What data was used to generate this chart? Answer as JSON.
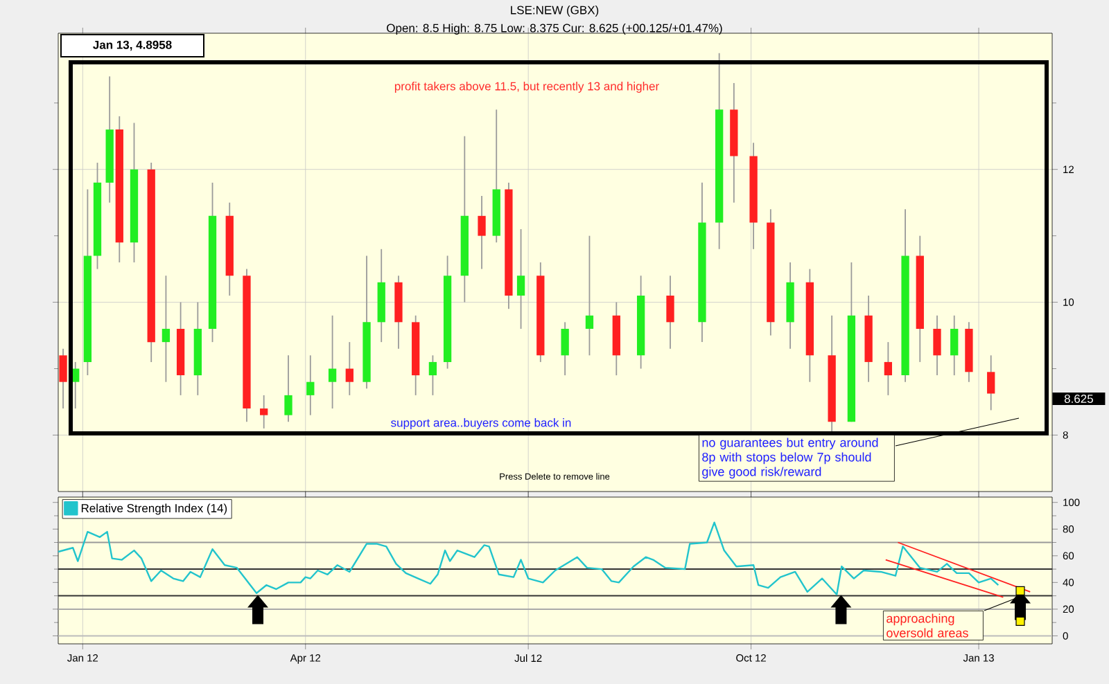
{
  "chart_data": [
    {
      "type": "candlestick",
      "title": "LSE:NEW (GBX)",
      "subtitle": "Open: 8.5 High: 8.75 Low: 8.375 Cur: 8.625 (+00.125/+01.47%)",
      "x": [
        "2011-12-25",
        "2011-12-30",
        "2012-01-04",
        "2012-01-08",
        "2012-01-13",
        "2012-01-17",
        "2012-01-23",
        "2012-01-30",
        "2012-02-05",
        "2012-02-11",
        "2012-02-18",
        "2012-02-24",
        "2012-03-02",
        "2012-03-09",
        "2012-03-16",
        "2012-03-26",
        "2012-04-04",
        "2012-04-13",
        "2012-04-20",
        "2012-04-27",
        "2012-05-03",
        "2012-05-10",
        "2012-05-17",
        "2012-05-24",
        "2012-05-30",
        "2012-06-06",
        "2012-06-13",
        "2012-06-19",
        "2012-06-24",
        "2012-06-29",
        "2012-07-07",
        "2012-07-17",
        "2012-07-27",
        "2012-08-07",
        "2012-08-17",
        "2012-08-29",
        "2012-09-11",
        "2012-09-18",
        "2012-09-24",
        "2012-10-02",
        "2012-10-09",
        "2012-10-17",
        "2012-10-25",
        "2012-11-03",
        "2012-11-11",
        "2012-11-18",
        "2012-11-26",
        "2012-12-03",
        "2012-12-09",
        "2012-12-16",
        "2012-12-23",
        "2012-12-29",
        "2013-01-07"
      ],
      "ohlc": [
        [
          9.2,
          9.3,
          8.4,
          8.8
        ],
        [
          8.8,
          9.1,
          8.4,
          9.0
        ],
        [
          9.1,
          11.7,
          8.9,
          10.7
        ],
        [
          10.7,
          12.1,
          10.5,
          11.8
        ],
        [
          11.8,
          13.4,
          11.5,
          12.6
        ],
        [
          12.6,
          12.8,
          10.6,
          10.9
        ],
        [
          10.9,
          12.7,
          10.6,
          12.0
        ],
        [
          12.0,
          12.1,
          9.1,
          9.4
        ],
        [
          9.4,
          10.4,
          8.8,
          9.6
        ],
        [
          9.6,
          10.0,
          8.6,
          8.9
        ],
        [
          8.9,
          10.0,
          8.6,
          9.6
        ],
        [
          9.6,
          11.8,
          9.4,
          11.3
        ],
        [
          11.3,
          11.5,
          10.1,
          10.4
        ],
        [
          10.4,
          10.5,
          8.2,
          8.4
        ],
        [
          8.4,
          8.6,
          8.1,
          8.3
        ],
        [
          8.3,
          9.2,
          8.2,
          8.6
        ],
        [
          8.6,
          9.2,
          8.3,
          8.8
        ],
        [
          8.8,
          9.8,
          8.4,
          9.0
        ],
        [
          9.0,
          9.4,
          8.6,
          8.8
        ],
        [
          8.8,
          10.7,
          8.7,
          9.7
        ],
        [
          9.7,
          10.8,
          9.4,
          10.3
        ],
        [
          10.3,
          10.4,
          9.3,
          9.7
        ],
        [
          9.7,
          9.8,
          8.6,
          8.9
        ],
        [
          8.9,
          9.2,
          8.6,
          9.1
        ],
        [
          9.1,
          10.7,
          9.0,
          10.4
        ],
        [
          10.4,
          12.5,
          10.0,
          11.3
        ],
        [
          11.3,
          11.6,
          10.5,
          11.0
        ],
        [
          11.0,
          12.9,
          10.9,
          11.7
        ],
        [
          11.7,
          11.8,
          9.9,
          10.1
        ],
        [
          10.1,
          11.1,
          9.6,
          10.4
        ],
        [
          10.4,
          10.6,
          9.1,
          9.2
        ],
        [
          9.2,
          9.7,
          8.9,
          9.6
        ],
        [
          9.6,
          11.0,
          9.2,
          9.8
        ],
        [
          9.8,
          10.0,
          8.9,
          9.2
        ],
        [
          9.2,
          10.4,
          9.0,
          10.1
        ],
        [
          10.1,
          10.4,
          9.3,
          9.7
        ],
        [
          9.7,
          11.8,
          9.4,
          11.2
        ],
        [
          11.2,
          13.75,
          10.8,
          12.9
        ],
        [
          12.9,
          13.3,
          11.5,
          12.2
        ],
        [
          12.2,
          12.4,
          10.8,
          11.2
        ],
        [
          11.2,
          11.4,
          9.5,
          9.7
        ],
        [
          9.7,
          10.6,
          9.3,
          10.3
        ],
        [
          10.3,
          10.5,
          8.8,
          9.2
        ],
        [
          9.2,
          9.8,
          8.05,
          8.2
        ],
        [
          8.2,
          10.6,
          8.2,
          9.8
        ],
        [
          9.8,
          10.1,
          8.8,
          9.1
        ],
        [
          9.1,
          9.4,
          8.6,
          8.9
        ],
        [
          8.9,
          11.4,
          8.8,
          10.7
        ],
        [
          10.7,
          11.0,
          9.1,
          9.6
        ],
        [
          9.6,
          9.8,
          8.9,
          9.2
        ],
        [
          9.2,
          9.8,
          8.9,
          9.6
        ],
        [
          9.6,
          9.7,
          8.8,
          8.95
        ],
        [
          8.95,
          9.2,
          8.375,
          8.625
        ]
      ],
      "colors": [
        "#ff2020",
        "#22ee22",
        "#22ee22",
        "#22ee22",
        "#22ee22",
        "#ff2020",
        "#22ee22",
        "#ff2020",
        "#22ee22",
        "#ff2020",
        "#22ee22",
        "#22ee22",
        "#ff2020",
        "#ff2020",
        "#ff2020",
        "#22ee22",
        "#22ee22",
        "#22ee22",
        "#ff2020",
        "#22ee22",
        "#22ee22",
        "#ff2020",
        "#ff2020",
        "#22ee22",
        "#22ee22",
        "#22ee22",
        "#ff2020",
        "#22ee22",
        "#ff2020",
        "#22ee22",
        "#ff2020",
        "#22ee22",
        "#22ee22",
        "#ff2020",
        "#22ee22",
        "#ff2020",
        "#22ee22",
        "#22ee22",
        "#ff2020",
        "#ff2020",
        "#ff2020",
        "#22ee22",
        "#ff2020",
        "#ff2020",
        "#22ee22",
        "#ff2020",
        "#ff2020",
        "#22ee22",
        "#ff2020",
        "#ff2020",
        "#22ee22",
        "#ff2020",
        "#ff2020"
      ],
      "xlim": [
        "2011-12-23",
        "2013-02-01"
      ],
      "ylim": [
        7.15,
        14.05
      ],
      "xticks": [
        {
          "value": "2012-01-02",
          "label": null
        },
        {
          "value": "2012-04-02",
          "label": null
        },
        {
          "value": "2012-07-02",
          "label": null
        },
        {
          "value": "2012-10-01",
          "label": null
        },
        {
          "value": "2013-01-02",
          "label": null
        }
      ],
      "yticks": [
        8,
        {
          "value": 9,
          "label": null
        },
        10,
        {
          "value": 11,
          "label": null
        },
        12,
        {
          "value": 13,
          "label": null
        }
      ],
      "tick_labels": "y",
      "grid": true,
      "annotations": [
        "Jan 13, 4.8958",
        "profit takers above 11.5, but recently 13 and higher",
        "support area..buyers come back in",
        "no guarantees but entry around 8p with stops below 7p should give good risk/reward",
        "Press Delete to remove line",
        "8.625"
      ]
    },
    {
      "type": "line",
      "legend": "top left",
      "grid": "x",
      "xlim": [
        "2011-12-23",
        "2013-02-01"
      ],
      "ylim": [
        -6,
        104
      ],
      "xticks": [
        {
          "value": "2012-01-02",
          "label": "Jan 12"
        },
        {
          "value": "2012-04-02",
          "label": "Apr 12"
        },
        {
          "value": "2012-07-02",
          "label": "Jul 12"
        },
        {
          "value": "2012-10-01",
          "label": "Oct 12"
        },
        {
          "value": "2013-01-02",
          "label": "Jan 13"
        }
      ],
      "yticks": [
        0,
        {
          "value": 10,
          "label": null
        },
        20,
        {
          "value": 30,
          "label": null
        },
        40,
        {
          "value": 50,
          "label": null
        },
        60,
        {
          "value": 70,
          "label": null
        },
        80,
        {
          "value": 90,
          "label": null
        },
        100
      ],
      "ref_lines": [
        {
          "axis": "y",
          "value": 70,
          "color": "#999999"
        },
        {
          "axis": "y",
          "value": 50,
          "color": "#333333"
        },
        {
          "axis": "y",
          "value": 30,
          "color": "#333333"
        },
        {
          "axis": "y",
          "value": 20,
          "color": "#aaaaaa"
        },
        {
          "axis": "y",
          "value": 0,
          "color": "#bbbbbb"
        }
      ],
      "series": [
        {
          "name": "Relative Strength Index (14)",
          "color": "#22c4cc",
          "x": [
            "2011-12-23",
            "2011-12-29",
            "2011-12-31",
            "2012-01-04",
            "2012-01-09",
            "2012-01-12",
            "2012-01-14",
            "2012-01-18",
            "2012-01-23",
            "2012-01-26",
            "2012-01-30",
            "2012-02-03",
            "2012-02-08",
            "2012-02-12",
            "2012-02-15",
            "2012-02-19",
            "2012-02-24",
            "2012-02-29",
            "2012-03-05",
            "2012-03-13",
            "2012-03-17",
            "2012-03-21",
            "2012-03-26",
            "2012-03-31",
            "2012-04-02",
            "2012-04-04",
            "2012-04-07",
            "2012-04-11",
            "2012-04-15",
            "2012-04-20",
            "2012-04-27",
            "2012-05-01",
            "2012-05-05",
            "2012-05-09",
            "2012-05-13",
            "2012-05-18",
            "2012-05-23",
            "2012-05-26",
            "2012-05-29",
            "2012-05-31",
            "2012-06-03",
            "2012-06-10",
            "2012-06-14",
            "2012-06-16",
            "2012-06-20",
            "2012-06-26",
            "2012-06-29",
            "2012-07-02",
            "2012-07-08",
            "2012-07-13",
            "2012-07-22",
            "2012-07-26",
            "2012-08-01",
            "2012-08-05",
            "2012-08-08",
            "2012-08-14",
            "2012-08-19",
            "2012-08-22",
            "2012-08-27",
            "2012-09-04",
            "2012-09-06",
            "2012-09-13",
            "2012-09-16",
            "2012-09-20",
            "2012-09-25",
            "2012-10-02",
            "2012-10-04",
            "2012-10-08",
            "2012-10-13",
            "2012-10-19",
            "2012-10-24",
            "2012-10-30",
            "2012-11-05",
            "2012-11-07",
            "2012-11-12",
            "2012-11-16",
            "2012-11-23",
            "2012-11-29",
            "2012-12-02",
            "2012-12-09",
            "2012-12-16",
            "2012-12-20",
            "2012-12-24",
            "2012-12-29",
            "2013-01-02",
            "2013-01-07",
            "2013-01-10"
          ],
          "values": [
            63,
            66,
            56,
            78,
            74,
            78,
            58,
            57,
            64,
            58,
            41,
            49,
            43,
            41,
            48,
            44,
            65,
            53,
            51,
            32,
            38,
            35,
            40,
            40,
            44,
            43,
            49,
            46,
            53,
            48,
            69,
            69,
            67,
            54,
            47,
            43,
            39,
            46,
            64,
            56,
            64,
            59,
            68,
            67,
            46,
            44,
            57,
            43,
            40,
            49,
            59,
            51,
            50,
            41,
            40,
            52,
            59,
            57,
            51,
            50,
            69,
            70,
            85,
            64,
            52,
            53,
            38,
            36,
            44,
            48,
            33,
            43,
            31,
            52,
            43,
            49,
            48,
            45,
            67,
            51,
            48,
            54,
            47,
            47,
            40,
            43,
            38
          ]
        },
        {
          "type": "line",
          "color": "#ff2020",
          "x": [
            "2012-11-30",
            "2013-01-23"
          ],
          "values": [
            70,
            33
          ]
        },
        {
          "type": "line",
          "color": "#ff2020",
          "x": [
            "2012-11-25",
            "2013-01-12"
          ],
          "values": [
            57,
            29
          ]
        }
      ],
      "annotations": [
        "approaching oversold areas"
      ]
    }
  ]
}
